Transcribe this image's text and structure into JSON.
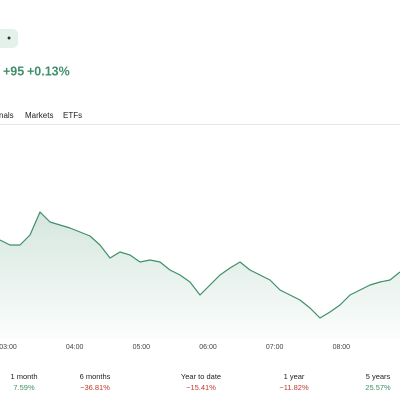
{
  "header": {
    "badge": "•",
    "change": "+95",
    "change_percent": "+0.13%"
  },
  "tabs": [
    "nals",
    "Markets",
    "ETFs"
  ],
  "chart_data": {
    "type": "line",
    "x": [
      2.88,
      3.03,
      3.18,
      3.33,
      3.48,
      3.63,
      3.78,
      3.93,
      4.08,
      4.23,
      4.38,
      4.53,
      4.68,
      4.83,
      4.98,
      5.13,
      5.28,
      5.43,
      5.58,
      5.73,
      5.88,
      6.03,
      6.18,
      6.33,
      6.48,
      6.63,
      6.78,
      6.93,
      7.08,
      7.23,
      7.38,
      7.53,
      7.68,
      7.83,
      7.98,
      8.13,
      8.28,
      8.43,
      8.58,
      8.73,
      8.88
    ],
    "series": [
      {
        "color": "#3f8f6a",
        "values": [
          98,
          93,
          93,
          103,
          126,
          116,
          113,
          110,
          106,
          102,
          93,
          80,
          86,
          83,
          76,
          78,
          76,
          68,
          63,
          56,
          43,
          53,
          63,
          70,
          76,
          68,
          63,
          58,
          48,
          43,
          38,
          30,
          20,
          26,
          33,
          43,
          48,
          53,
          56,
          58,
          66
        ]
      }
    ],
    "xlim": [
      2.88,
      8.88
    ],
    "ylim": [
      0,
      200
    ],
    "xticks": [
      {
        "value": 3,
        "label": "03:00"
      },
      {
        "value": 4,
        "label": "04:00"
      },
      {
        "value": 5,
        "label": "05:00"
      },
      {
        "value": 6,
        "label": "06:00"
      },
      {
        "value": 7,
        "label": "07:00"
      },
      {
        "value": 8,
        "label": "08:00"
      }
    ]
  },
  "performance": [
    {
      "label": "1 month",
      "value": "7.59%"
    },
    {
      "label": "6 months",
      "value": "−36.81%"
    },
    {
      "label": "Year to date",
      "value": "−15.41%"
    },
    {
      "label": "1 year",
      "value": "−11.82%"
    },
    {
      "label": "5 years",
      "value": "25.57%"
    }
  ]
}
